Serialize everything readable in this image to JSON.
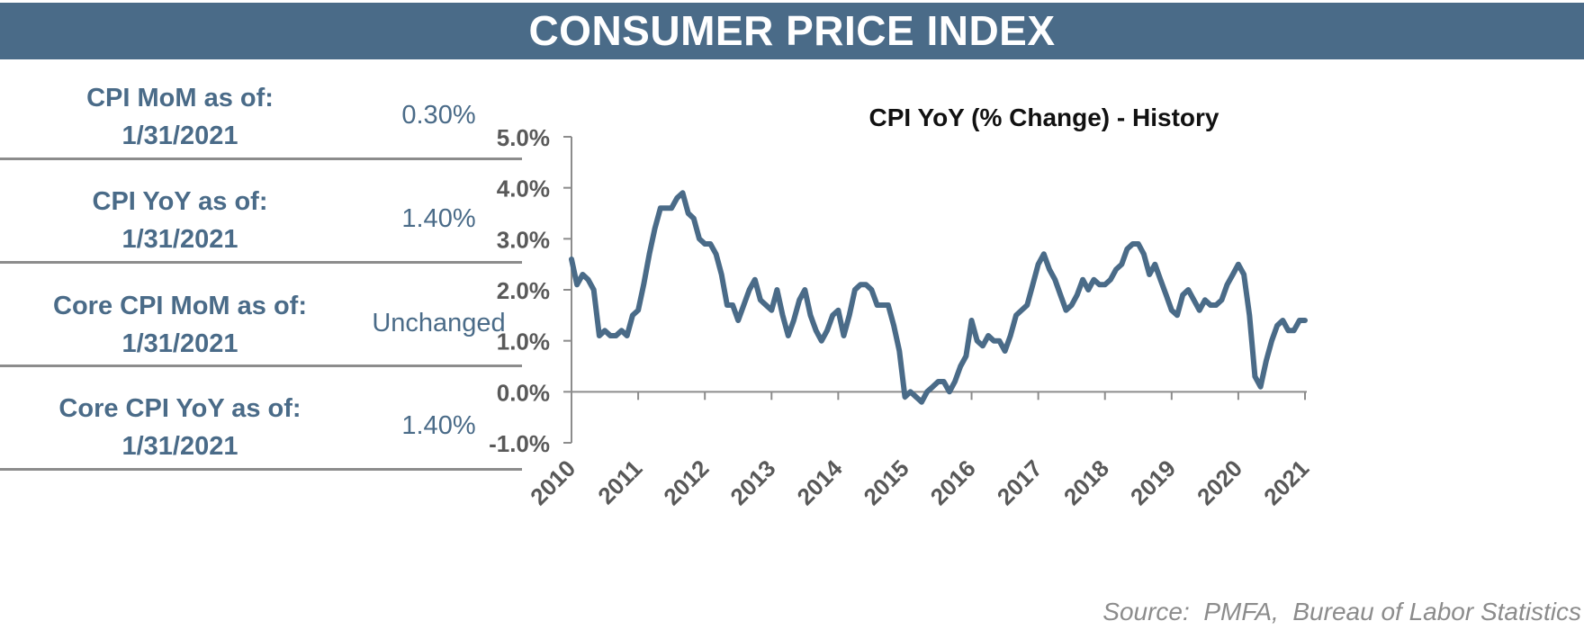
{
  "header": {
    "title": "CONSUMER PRICE INDEX"
  },
  "stats": [
    {
      "label_line1": "CPI MoM as of:",
      "label_line2": "1/31/2021",
      "value": "0.30%"
    },
    {
      "label_line1": "CPI YoY as of:",
      "label_line2": "1/31/2021",
      "value": "1.40%"
    },
    {
      "label_line1": "Core CPI MoM as of:",
      "label_line2": "1/31/2021",
      "value": "Unchanged"
    },
    {
      "label_line1": "Core CPI YoY as of:",
      "label_line2": "1/31/2021",
      "value": "1.40%"
    }
  ],
  "source": "Source:  PMFA,  Bureau of Labor Statistics",
  "colors": {
    "accent": "#4a6b88",
    "divider": "#8c8c8c",
    "axis": "#8c8c8c",
    "axis_text": "#595959"
  },
  "chart_data": {
    "type": "line",
    "title": "CPI YoY (% Change) - History",
    "xlabel": "",
    "ylabel": "",
    "ylim": [
      -1.0,
      5.0
    ],
    "yticks": [
      5.0,
      4.0,
      3.0,
      2.0,
      1.0,
      0.0,
      -1.0
    ],
    "ytick_labels": [
      "5.0%",
      "4.0%",
      "3.0%",
      "2.0%",
      "1.0%",
      "0.0%",
      "-1.0%"
    ],
    "xlim": [
      2010.0,
      2021.0
    ],
    "xticks": [
      2010,
      2011,
      2012,
      2013,
      2014,
      2015,
      2016,
      2017,
      2018,
      2019,
      2020,
      2021
    ],
    "xtick_labels": [
      "2010",
      "2011",
      "2012",
      "2013",
      "2014",
      "2015",
      "2016",
      "2017",
      "2018",
      "2019",
      "2020",
      "2021"
    ],
    "grid": false,
    "legend": "none",
    "series": [
      {
        "color": "#4a6b88",
        "x": [
          2010.0,
          2010.083,
          2010.167,
          2010.25,
          2010.333,
          2010.417,
          2010.5,
          2010.583,
          2010.667,
          2010.75,
          2010.833,
          2010.917,
          2011.0,
          2011.083,
          2011.167,
          2011.25,
          2011.333,
          2011.417,
          2011.5,
          2011.583,
          2011.667,
          2011.75,
          2011.833,
          2011.917,
          2012.0,
          2012.083,
          2012.167,
          2012.25,
          2012.333,
          2012.417,
          2012.5,
          2012.583,
          2012.667,
          2012.75,
          2012.833,
          2012.917,
          2013.0,
          2013.083,
          2013.167,
          2013.25,
          2013.333,
          2013.417,
          2013.5,
          2013.583,
          2013.667,
          2013.75,
          2013.833,
          2013.917,
          2014.0,
          2014.083,
          2014.167,
          2014.25,
          2014.333,
          2014.417,
          2014.5,
          2014.583,
          2014.667,
          2014.75,
          2014.833,
          2014.917,
          2015.0,
          2015.083,
          2015.167,
          2015.25,
          2015.333,
          2015.417,
          2015.5,
          2015.583,
          2015.667,
          2015.75,
          2015.833,
          2015.917,
          2016.0,
          2016.083,
          2016.167,
          2016.25,
          2016.333,
          2016.417,
          2016.5,
          2016.583,
          2016.667,
          2016.75,
          2016.833,
          2016.917,
          2017.0,
          2017.083,
          2017.167,
          2017.25,
          2017.333,
          2017.417,
          2017.5,
          2017.583,
          2017.667,
          2017.75,
          2017.833,
          2017.917,
          2018.0,
          2018.083,
          2018.167,
          2018.25,
          2018.333,
          2018.417,
          2018.5,
          2018.583,
          2018.667,
          2018.75,
          2018.833,
          2018.917,
          2019.0,
          2019.083,
          2019.167,
          2019.25,
          2019.333,
          2019.417,
          2019.5,
          2019.583,
          2019.667,
          2019.75,
          2019.833,
          2019.917,
          2020.0,
          2020.083,
          2020.167,
          2020.25,
          2020.333,
          2020.417,
          2020.5,
          2020.583,
          2020.667,
          2020.75,
          2020.833,
          2020.917,
          2021.0
        ],
        "values": [
          2.6,
          2.1,
          2.3,
          2.2,
          2.0,
          1.1,
          1.2,
          1.1,
          1.1,
          1.2,
          1.1,
          1.5,
          1.6,
          2.1,
          2.7,
          3.2,
          3.6,
          3.6,
          3.6,
          3.8,
          3.9,
          3.5,
          3.4,
          3.0,
          2.9,
          2.9,
          2.7,
          2.3,
          1.7,
          1.7,
          1.4,
          1.7,
          2.0,
          2.2,
          1.8,
          1.7,
          1.6,
          2.0,
          1.5,
          1.1,
          1.4,
          1.8,
          2.0,
          1.5,
          1.2,
          1.0,
          1.2,
          1.5,
          1.6,
          1.1,
          1.5,
          2.0,
          2.1,
          2.1,
          2.0,
          1.7,
          1.7,
          1.7,
          1.3,
          0.8,
          -0.1,
          0.0,
          -0.1,
          -0.2,
          0.0,
          0.1,
          0.2,
          0.2,
          0.0,
          0.2,
          0.5,
          0.7,
          1.4,
          1.0,
          0.9,
          1.1,
          1.0,
          1.0,
          0.8,
          1.1,
          1.5,
          1.6,
          1.7,
          2.1,
          2.5,
          2.7,
          2.4,
          2.2,
          1.9,
          1.6,
          1.7,
          1.9,
          2.2,
          2.0,
          2.2,
          2.1,
          2.1,
          2.2,
          2.4,
          2.5,
          2.8,
          2.9,
          2.9,
          2.7,
          2.3,
          2.5,
          2.2,
          1.9,
          1.6,
          1.5,
          1.9,
          2.0,
          1.8,
          1.6,
          1.8,
          1.7,
          1.7,
          1.8,
          2.1,
          2.3,
          2.5,
          2.3,
          1.5,
          0.3,
          0.1,
          0.6,
          1.0,
          1.3,
          1.4,
          1.2,
          1.2,
          1.4,
          1.4
        ]
      }
    ]
  }
}
